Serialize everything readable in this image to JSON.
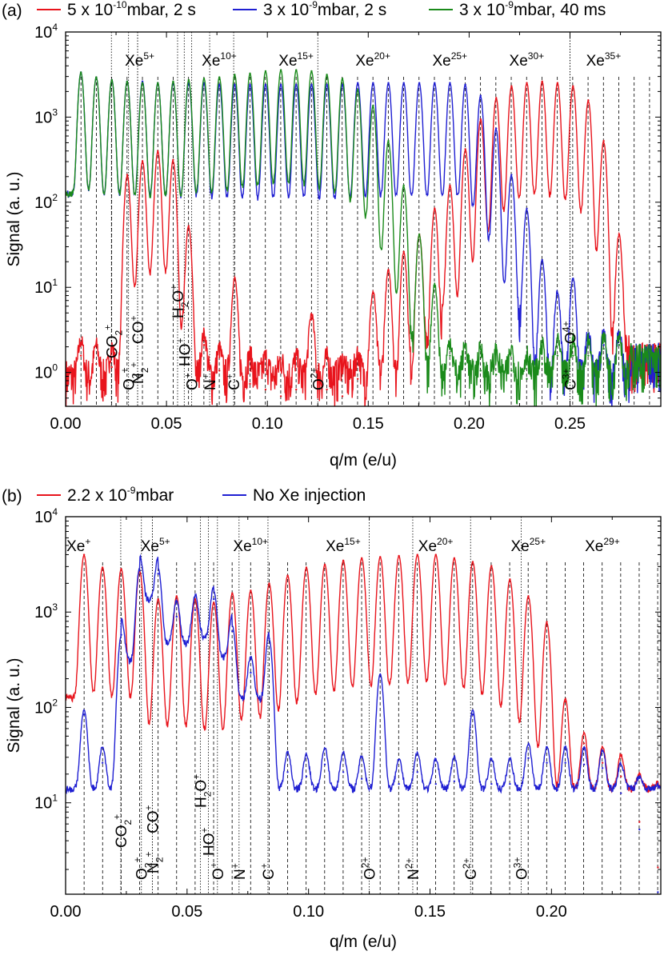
{
  "chart_data": [
    {
      "type": "line",
      "panel_label": "(a)",
      "xlabel": "q/m (e/u)",
      "ylabel": "Signal (a. u.)",
      "xlim": [
        0.0,
        0.295
      ],
      "ylim": [
        0.4,
        10000
      ],
      "yscale": "log",
      "xticks": [
        "0.00",
        "0.05",
        "0.10",
        "0.15",
        "0.20",
        "0.25"
      ],
      "yticks": [
        "10^0",
        "10^1",
        "10^2",
        "10^3",
        "10^4"
      ],
      "legend": {
        "placement": "top",
        "entries": [
          {
            "name": "5 x 10^-10mbar, 2 s",
            "color": "#e8141c"
          },
          {
            "name": "3 x 10^-9mbar, 2 s",
            "color": "#1f1fd2"
          },
          {
            "name": "3 x 10^-9mbar, 40 ms",
            "color": "#1a8a1a"
          }
        ]
      },
      "xe_labels": [
        {
          "charge": 5,
          "q": 0.0381,
          "label": "Xe",
          "sup": "5+"
        },
        {
          "charge": 10,
          "q": 0.0762,
          "label": "Xe",
          "sup": "10+"
        },
        {
          "charge": 15,
          "q": 0.1143,
          "label": "Xe",
          "sup": "15+"
        },
        {
          "charge": 20,
          "q": 0.1524,
          "label": "Xe",
          "sup": "20+"
        },
        {
          "charge": 25,
          "q": 0.1905,
          "label": "Xe",
          "sup": "25+"
        },
        {
          "charge": 30,
          "q": 0.2286,
          "label": "Xe",
          "sup": "30+"
        },
        {
          "charge": 35,
          "q": 0.2667,
          "label": "Xe",
          "sup": "35+"
        }
      ],
      "ion_labels": [
        {
          "q": 0.0227,
          "text": "CO",
          "sub": "2",
          "sup": "+"
        },
        {
          "q": 0.0312,
          "text": "O",
          "sub": "2",
          "sup": "+"
        },
        {
          "q": 0.0357,
          "text": "N",
          "sub": "2",
          "sup": "+"
        },
        {
          "q": 0.0357,
          "text": "CO",
          "sub": "",
          "sup": "+"
        },
        {
          "q": 0.0555,
          "text": "H",
          "sub": "2",
          "mid": "O",
          "sup": "+"
        },
        {
          "q": 0.0588,
          "text": "HO",
          "sub": "",
          "sup": "+"
        },
        {
          "q": 0.0625,
          "text": "O",
          "sub": "",
          "sup": "+"
        },
        {
          "q": 0.0714,
          "text": "N",
          "sub": "",
          "sup": "+"
        },
        {
          "q": 0.0833,
          "text": "C",
          "sub": "",
          "sup": "+"
        },
        {
          "q": 0.125,
          "text": "O",
          "sub": "",
          "sup": "2+"
        },
        {
          "q": 0.25,
          "text": "C",
          "sub": "",
          "sup": "3+"
        },
        {
          "q": 0.25,
          "text": "O",
          "sub": "",
          "sup": "4+"
        }
      ],
      "series": [
        {
          "name": "5 x 10^-10mbar, 2 s",
          "color": "#e8141c",
          "x": [
            0.0076,
            0.0152,
            0.0229,
            0.0305,
            0.0381,
            0.0457,
            0.0533,
            0.061,
            0.0686,
            0.0762,
            0.0838,
            0.0914,
            0.0991,
            0.1067,
            0.1143,
            0.1219,
            0.1295,
            0.1372,
            0.1448,
            0.1524,
            0.16,
            0.1676,
            0.1753,
            0.1829,
            0.1905,
            0.1981,
            0.2057,
            0.2134,
            0.221,
            0.2286,
            0.2362,
            0.2438,
            0.2515,
            0.2591,
            0.2667,
            0.2743
          ],
          "y": [
            1.5,
            1.2,
            1.1,
            200,
            290,
            380,
            300,
            50,
            2,
            1,
            12,
            0.7,
            0.6,
            0.5,
            0.6,
            4,
            0.6,
            0.5,
            0.8,
            8,
            15,
            25,
            40,
            80,
            150,
            400,
            900,
            1600,
            2200,
            2400,
            2500,
            2400,
            2200,
            1500,
            500,
            40
          ]
        },
        {
          "name": "3 x 10^-9mbar, 2 s",
          "color": "#1f1fd2",
          "x": [
            0.0076,
            0.0152,
            0.0229,
            0.0305,
            0.0381,
            0.0457,
            0.0533,
            0.061,
            0.0686,
            0.0762,
            0.0838,
            0.0914,
            0.0991,
            0.1067,
            0.1143,
            0.1219,
            0.1295,
            0.1372,
            0.1448,
            0.1524,
            0.16,
            0.1676,
            0.1753,
            0.1829,
            0.1905,
            0.1981,
            0.2057,
            0.2134,
            0.221,
            0.2286,
            0.2362,
            0.2438,
            0.2515,
            0.2591,
            0.2667,
            0.2743
          ],
          "y": [
            3200,
            2800,
            2600,
            2500,
            2500,
            2400,
            2400,
            2400,
            2400,
            2300,
            2300,
            2300,
            2300,
            2300,
            2300,
            2300,
            2300,
            2300,
            2400,
            2400,
            2400,
            2400,
            2400,
            2400,
            2400,
            2300,
            1700,
            700,
            200,
            80,
            20,
            8,
            12,
            2,
            2,
            2
          ]
        },
        {
          "name": "3 x 10^-9mbar, 40 ms",
          "color": "#1a8a1a",
          "x": [
            0.0076,
            0.0152,
            0.0229,
            0.0305,
            0.0381,
            0.0457,
            0.0533,
            0.061,
            0.0686,
            0.0762,
            0.0838,
            0.0914,
            0.0991,
            0.1067,
            0.1143,
            0.1219,
            0.1295,
            0.1372,
            0.1448,
            0.1524,
            0.16,
            0.1676,
            0.1753,
            0.1829,
            0.1905,
            0.1981,
            0.2057,
            0.2134,
            0.221,
            0.2286,
            0.2362,
            0.2438,
            0.2515,
            0.2591,
            0.2667,
            0.2743
          ],
          "y": [
            3200,
            2800,
            2600,
            2500,
            2400,
            2400,
            2500,
            2600,
            2700,
            2800,
            3000,
            3100,
            3300,
            3400,
            3400,
            3300,
            3000,
            2700,
            2000,
            1300,
            500,
            150,
            40,
            10,
            1.5,
            1.2,
            1,
            0.9,
            1,
            0.8,
            1.2,
            1.5,
            1.5,
            1.5,
            1.8,
            2
          ]
        }
      ]
    },
    {
      "type": "line",
      "panel_label": "(b)",
      "xlabel": "q/m (e/u)",
      "ylabel": "Signal (a. u.)",
      "xlim": [
        0.0,
        0.245
      ],
      "ylim": [
        1.1,
        10000
      ],
      "yscale": "log",
      "xticks": [
        "0.00",
        "0.05",
        "0.10",
        "0.15",
        "0.20"
      ],
      "yticks": [
        "10^1",
        "10^2",
        "10^3",
        "10^4"
      ],
      "legend": {
        "placement": "top",
        "entries": [
          {
            "name": "2.2 x 10^-9mbar",
            "color": "#e8141c"
          },
          {
            "name": "No Xe injection",
            "color": "#1f1fd2"
          }
        ]
      },
      "xe_labels": [
        {
          "charge": 1,
          "q": 0.0076,
          "label": "Xe",
          "sup": "+"
        },
        {
          "charge": 5,
          "q": 0.0381,
          "label": "Xe",
          "sup": "5+"
        },
        {
          "charge": 10,
          "q": 0.0762,
          "label": "Xe",
          "sup": "10+"
        },
        {
          "charge": 15,
          "q": 0.1143,
          "label": "Xe",
          "sup": "15+"
        },
        {
          "charge": 20,
          "q": 0.1524,
          "label": "Xe",
          "sup": "20+"
        },
        {
          "charge": 25,
          "q": 0.1905,
          "label": "Xe",
          "sup": "25+"
        },
        {
          "charge": 29,
          "q": 0.221,
          "label": "Xe",
          "sup": "29+"
        }
      ],
      "ion_labels": [
        {
          "q": 0.0227,
          "text": "CO",
          "sub": "2",
          "sup": "+"
        },
        {
          "q": 0.0312,
          "text": "O",
          "sub": "2",
          "sup": "+"
        },
        {
          "q": 0.0357,
          "text": "N",
          "sub": "2",
          "sup": "+"
        },
        {
          "q": 0.0357,
          "text": "CO",
          "sub": "",
          "sup": "+"
        },
        {
          "q": 0.0555,
          "text": "H",
          "sub": "2",
          "mid": "O",
          "sup": "+"
        },
        {
          "q": 0.0588,
          "text": "HO",
          "sub": "",
          "sup": "+"
        },
        {
          "q": 0.0625,
          "text": "O",
          "sub": "",
          "sup": "+"
        },
        {
          "q": 0.0714,
          "text": "N",
          "sub": "",
          "sup": "+"
        },
        {
          "q": 0.0833,
          "text": "C",
          "sub": "",
          "sup": "+"
        },
        {
          "q": 0.125,
          "text": "O",
          "sub": "",
          "sup": "2+"
        },
        {
          "q": 0.1429,
          "text": "N",
          "sub": "",
          "sup": "2+"
        },
        {
          "q": 0.1667,
          "text": "C",
          "sub": "",
          "sup": "2+"
        },
        {
          "q": 0.1875,
          "text": "O",
          "sub": "",
          "sup": "3+"
        }
      ],
      "series": [
        {
          "name": "2.2 x 10^-9mbar",
          "color": "#e8141c",
          "x": [
            0.0076,
            0.0152,
            0.0229,
            0.0305,
            0.0381,
            0.0457,
            0.0533,
            0.061,
            0.0686,
            0.0762,
            0.0838,
            0.0914,
            0.0991,
            0.1067,
            0.1143,
            0.1219,
            0.1295,
            0.1372,
            0.1448,
            0.1524,
            0.16,
            0.1676,
            0.1753,
            0.1829,
            0.1905,
            0.1981,
            0.2057,
            0.2134,
            0.221,
            0.2286,
            0.2362,
            0.2438
          ],
          "y": [
            3800,
            2800,
            2700,
            2600,
            1300,
            1400,
            1300,
            1200,
            1500,
            1600,
            1900,
            2300,
            2800,
            3000,
            3300,
            3500,
            3600,
            3700,
            3800,
            3800,
            3500,
            3200,
            2900,
            2100,
            1400,
            750,
            110,
            40,
            25,
            18,
            6,
            2
          ]
        },
        {
          "name": "No Xe injection",
          "color": "#1f1fd2",
          "x": [
            0.0076,
            0.0152,
            0.0229,
            0.0305,
            0.0381,
            0.0457,
            0.0533,
            0.061,
            0.0686,
            0.0762,
            0.0838,
            0.0914,
            0.0991,
            0.1067,
            0.1143,
            0.1219,
            0.1295,
            0.1372,
            0.1448,
            0.1524,
            0.16,
            0.1676,
            0.1753,
            0.1829,
            0.1905,
            0.1981,
            0.2057,
            0.2134,
            0.221,
            0.2286,
            0.2362,
            0.2438
          ],
          "y": [
            80,
            25,
            550,
            2600,
            2400,
            850,
            1000,
            1300,
            600,
            220,
            500,
            20,
            18,
            24,
            20,
            17,
            210,
            15,
            20,
            15,
            16,
            80,
            15,
            15,
            28,
            25,
            25,
            24,
            22,
            12,
            5,
            1.1
          ]
        }
      ]
    }
  ]
}
